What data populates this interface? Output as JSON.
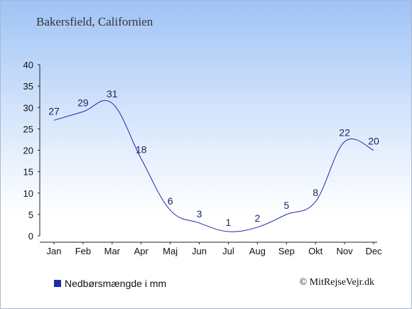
{
  "page": {
    "city_title": "Bakersfield, Californien",
    "copyright": "© MitRejseVejr.dk"
  },
  "chart_data": {
    "type": "line",
    "title": "",
    "xlabel": "",
    "ylabel": "",
    "categories": [
      "Jan",
      "Feb",
      "Mar",
      "Apr",
      "Maj",
      "Jun",
      "Jul",
      "Aug",
      "Sep",
      "Okt",
      "Nov",
      "Dec"
    ],
    "series": [
      {
        "name": "Nedbørsmængde i mm",
        "values": [
          27,
          29,
          31,
          18,
          6,
          3,
          1,
          2,
          5,
          8,
          22,
          20
        ],
        "color": "#1f2aa8"
      }
    ],
    "ylim": [
      0,
      40
    ],
    "yticks": [
      0,
      5,
      10,
      15,
      20,
      25,
      30,
      35,
      40
    ],
    "grid": false,
    "legend_position": "bottom-left",
    "data_labels": true
  }
}
